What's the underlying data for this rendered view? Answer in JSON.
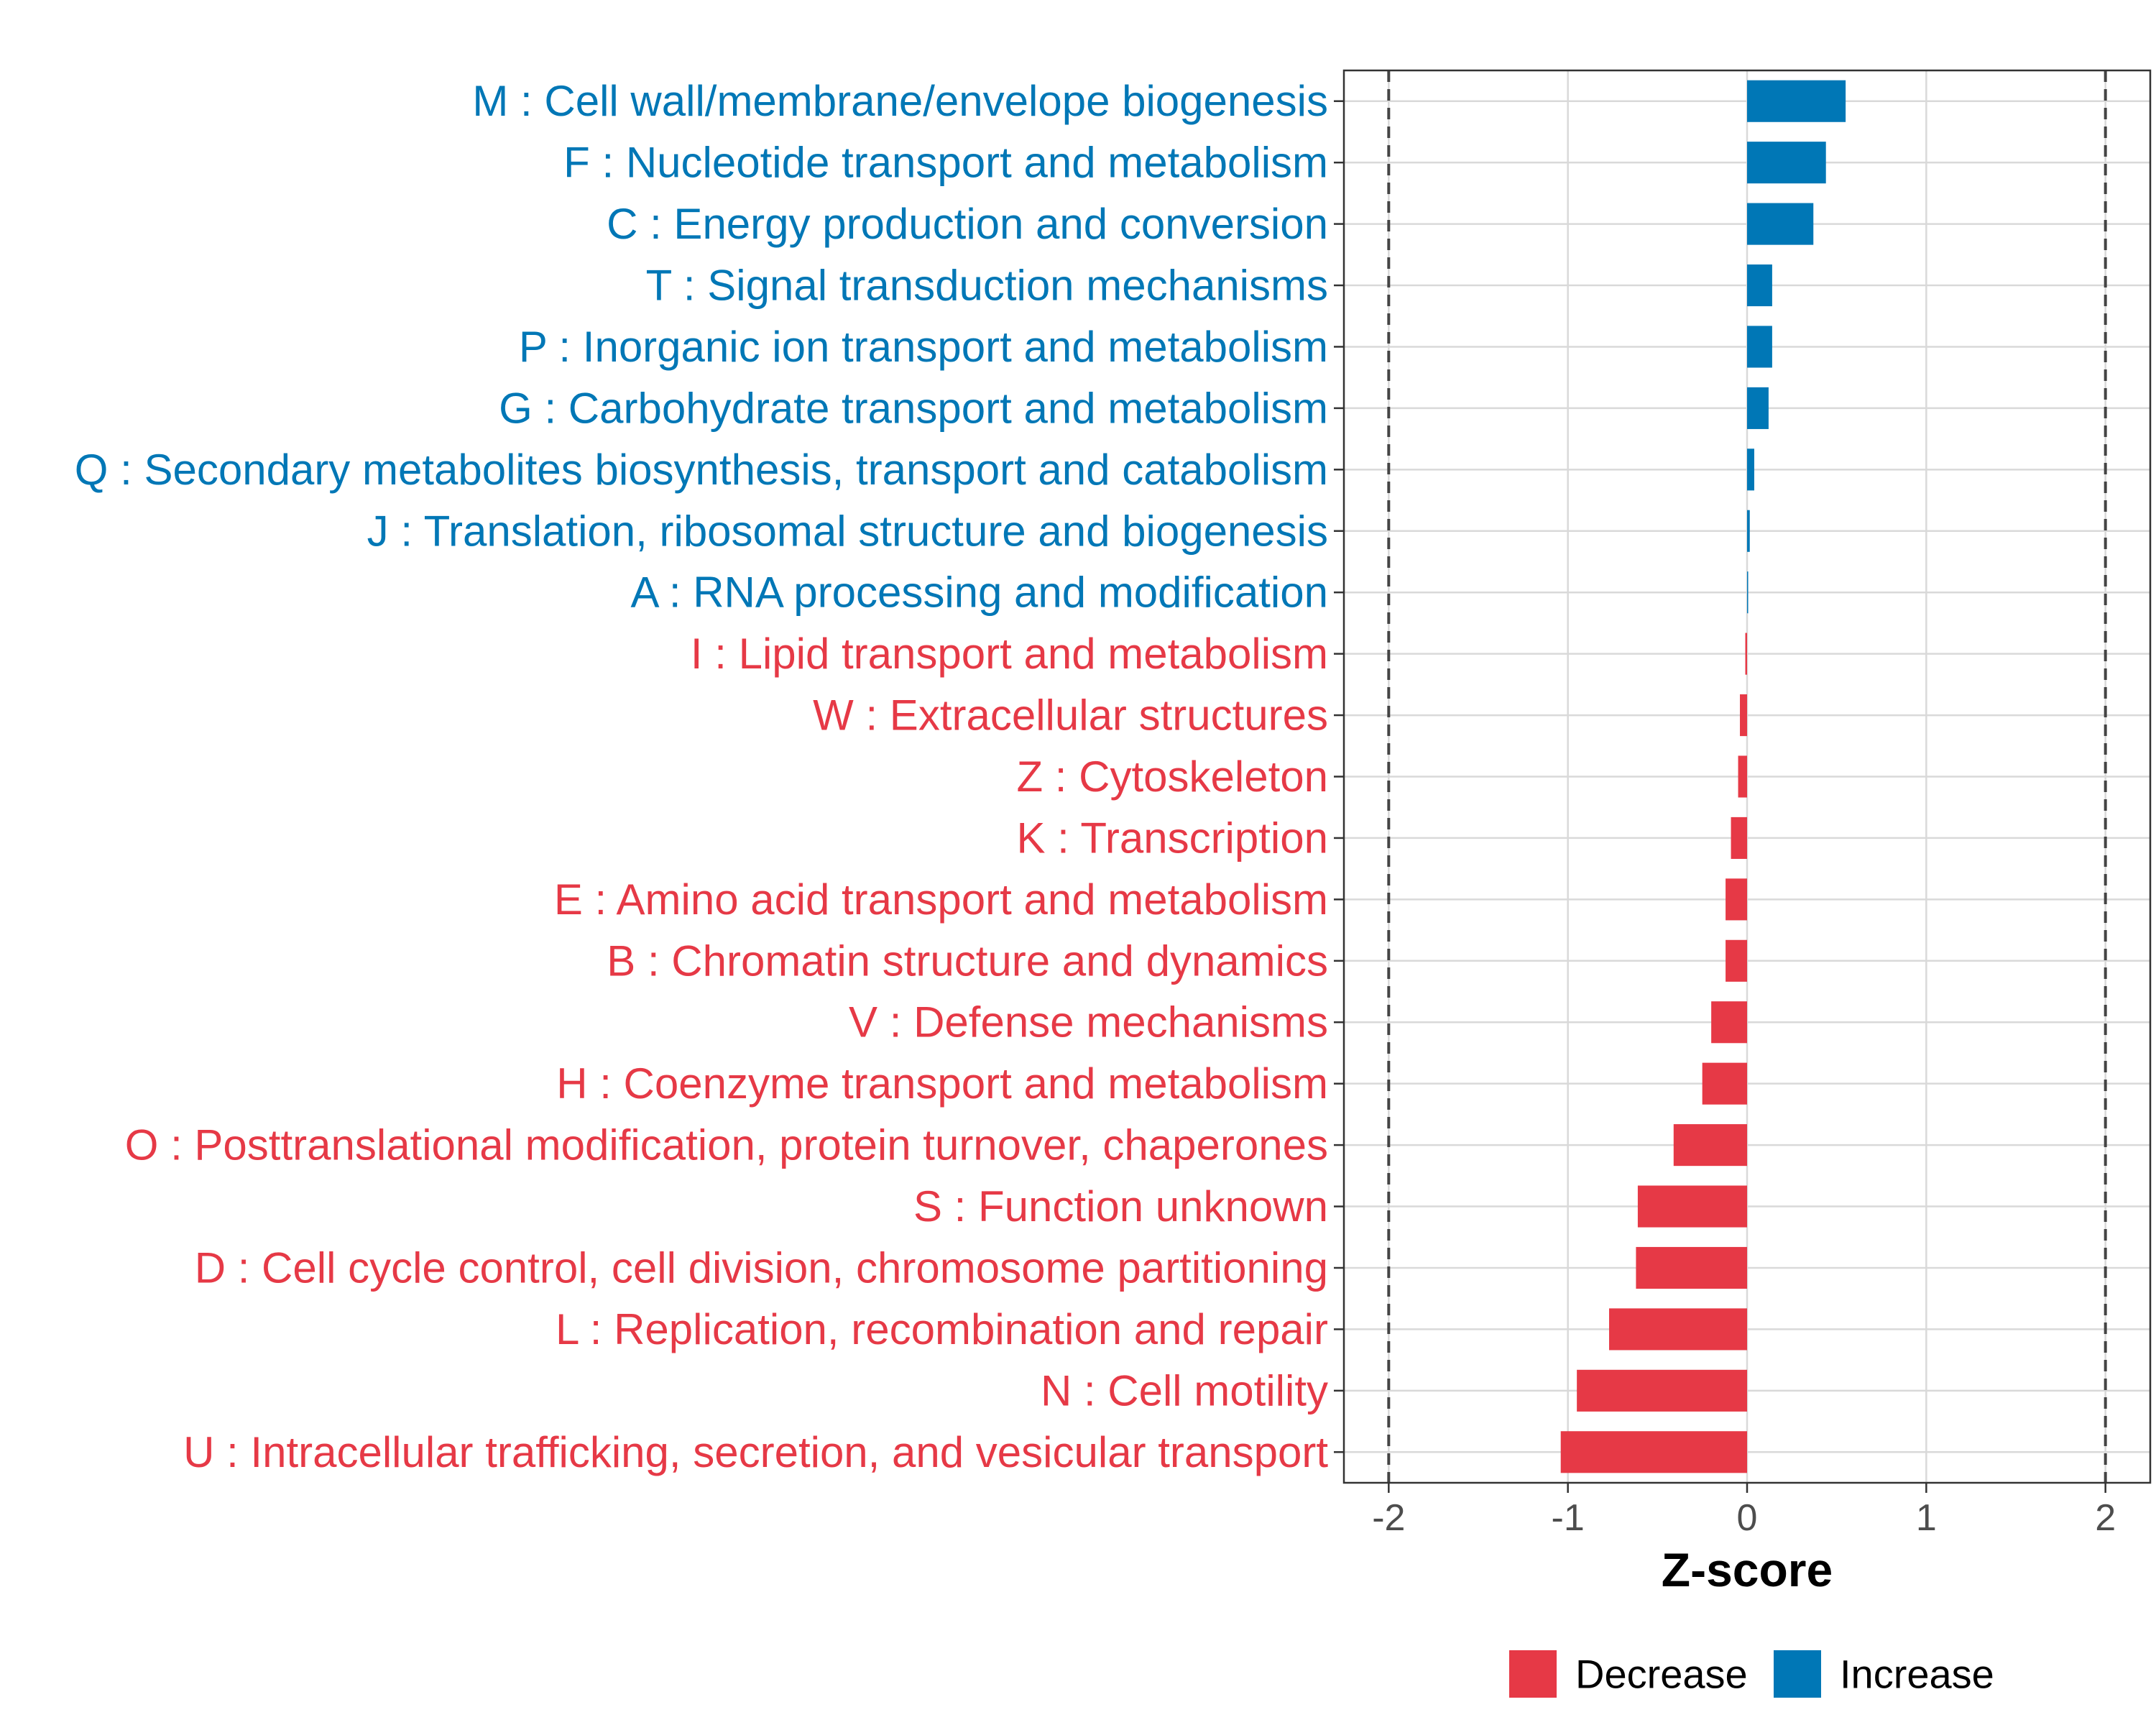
{
  "chart_data": {
    "type": "bar",
    "orientation": "horizontal",
    "title": "",
    "xlabel": "Z-score",
    "ylabel": "",
    "xlim": [
      -2.25,
      2.25
    ],
    "xticks": [
      -2,
      -1,
      0,
      1,
      2
    ],
    "xtick_labels": [
      "-2",
      "-1",
      "0",
      "1",
      "2"
    ],
    "reference_lines": [
      -2,
      2
    ],
    "grid": true,
    "legend_position": "bottom",
    "colors": {
      "Decrease": "#E63946",
      "Increase": "#0077B6"
    },
    "categories": [
      {
        "label": "M : Cell wall/membrane/envelope biogenesis",
        "value": 0.55,
        "group": "Increase"
      },
      {
        "label": "F : Nucleotide transport and metabolism",
        "value": 0.44,
        "group": "Increase"
      },
      {
        "label": "C : Energy production and conversion",
        "value": 0.37,
        "group": "Increase"
      },
      {
        "label": "T : Signal transduction mechanisms",
        "value": 0.14,
        "group": "Increase"
      },
      {
        "label": "P : Inorganic ion transport and metabolism",
        "value": 0.14,
        "group": "Increase"
      },
      {
        "label": "G : Carbohydrate transport and metabolism",
        "value": 0.12,
        "group": "Increase"
      },
      {
        "label": "Q : Secondary metabolites biosynthesis, transport and catabolism",
        "value": 0.04,
        "group": "Increase"
      },
      {
        "label": "J : Translation, ribosomal structure and biogenesis",
        "value": 0.015,
        "group": "Increase"
      },
      {
        "label": "A : RNA processing and modification",
        "value": 0.005,
        "group": "Increase"
      },
      {
        "label": "I : Lipid transport and metabolism",
        "value": -0.01,
        "group": "Decrease"
      },
      {
        "label": "W : Extracellular structures",
        "value": -0.04,
        "group": "Decrease"
      },
      {
        "label": "Z : Cytoskeleton",
        "value": -0.05,
        "group": "Decrease"
      },
      {
        "label": "K : Transcription",
        "value": -0.09,
        "group": "Decrease"
      },
      {
        "label": "E : Amino acid transport and metabolism",
        "value": -0.12,
        "group": "Decrease"
      },
      {
        "label": "B : Chromatin structure and dynamics",
        "value": -0.12,
        "group": "Decrease"
      },
      {
        "label": "V : Defense mechanisms",
        "value": -0.2,
        "group": "Decrease"
      },
      {
        "label": "H : Coenzyme transport and metabolism",
        "value": -0.25,
        "group": "Decrease"
      },
      {
        "label": "O : Posttranslational modification, protein turnover, chaperones",
        "value": -0.41,
        "group": "Decrease"
      },
      {
        "label": "S : Function unknown",
        "value": -0.61,
        "group": "Decrease"
      },
      {
        "label": "D : Cell cycle control, cell division, chromosome partitioning",
        "value": -0.62,
        "group": "Decrease"
      },
      {
        "label": "L : Replication, recombination and repair",
        "value": -0.77,
        "group": "Decrease"
      },
      {
        "label": "N : Cell motility",
        "value": -0.95,
        "group": "Decrease"
      },
      {
        "label": "U : Intracellular trafficking, secretion, and vesicular transport",
        "value": -1.04,
        "group": "Decrease"
      }
    ],
    "legend": [
      {
        "label": "Decrease"
      },
      {
        "label": "Increase"
      }
    ]
  }
}
